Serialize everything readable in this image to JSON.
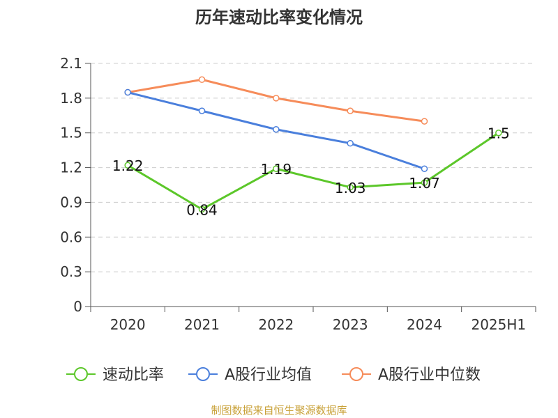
{
  "chart_data": {
    "type": "line",
    "title": "历年速动比率变化情况",
    "categories": [
      "2020",
      "2021",
      "2022",
      "2023",
      "2024",
      "2025H1"
    ],
    "ylim": [
      0,
      2.1
    ],
    "yticks": [
      "0",
      "0.3",
      "0.6",
      "0.9",
      "1.2",
      "1.5",
      "1.8",
      "2.1"
    ],
    "grid": true,
    "legend_position": "bottom",
    "series": [
      {
        "name": "速动比率",
        "color": "#5cc72a",
        "values": [
          1.22,
          0.84,
          1.19,
          1.03,
          1.07,
          1.5
        ],
        "labels": [
          "1.22",
          "0.84",
          "1.19",
          "1.03",
          "1.07",
          "1.5"
        ],
        "show_labels": true
      },
      {
        "name": "A股行业均值",
        "color": "#4a7fdc",
        "values": [
          1.85,
          1.69,
          1.53,
          1.41,
          1.19,
          null
        ],
        "show_labels": false
      },
      {
        "name": "A股行业中位数",
        "color": "#f68c5a",
        "values": [
          1.85,
          1.96,
          1.8,
          1.69,
          1.6,
          null
        ],
        "show_labels": false
      }
    ],
    "source": "制图数据来自恒生聚源数据库",
    "source_color": "#c9a23a"
  }
}
